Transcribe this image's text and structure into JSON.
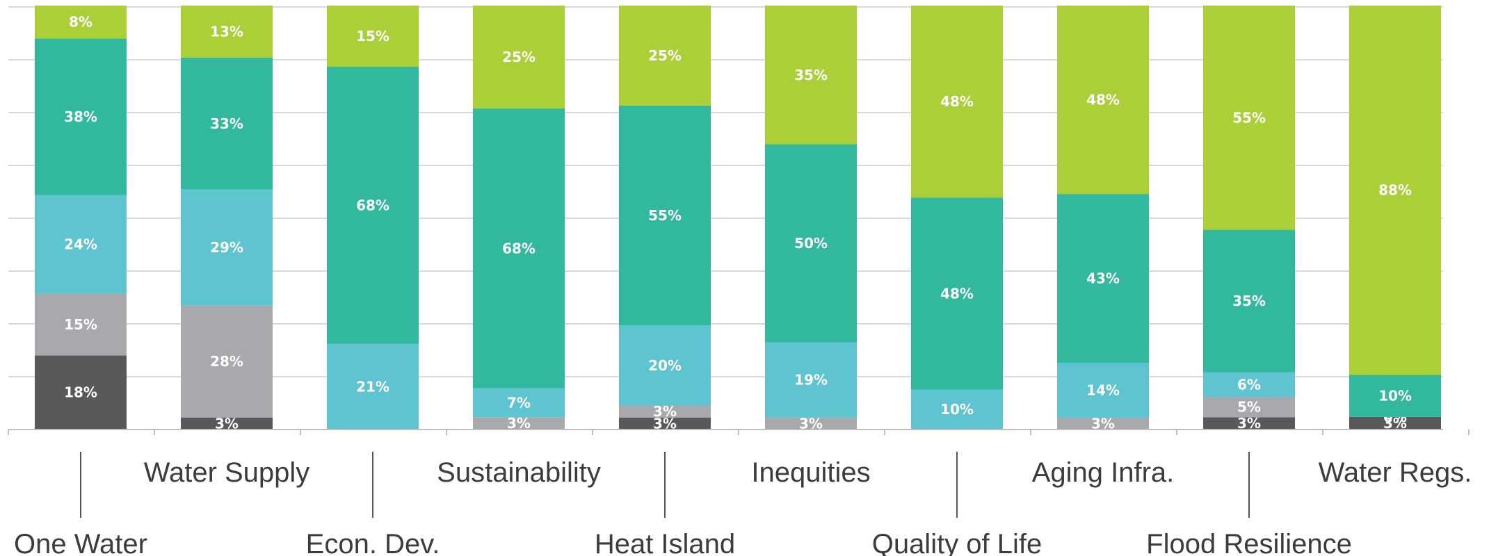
{
  "chart_data": {
    "type": "bar",
    "stacked": true,
    "normalized": true,
    "ylim": [
      0,
      100
    ],
    "grid": true,
    "legend": "none",
    "categories": [
      "One Water",
      "Water Supply",
      "Econ. Dev.",
      "Sustainability",
      "Heat Island",
      "Inequities",
      "Quality of Life",
      "Aging Infra.",
      "Flood Resilience",
      "Water Regs."
    ],
    "series": [
      {
        "color": "#58595b",
        "values": [
          18,
          3,
          0,
          0,
          3,
          0,
          0,
          0,
          3,
          3
        ],
        "labels": [
          "18%",
          "3%",
          "",
          "",
          "3%",
          "",
          "",
          "",
          "3%",
          "3%"
        ]
      },
      {
        "color": "#a7a9ac",
        "values": [
          15,
          28,
          0,
          3,
          3,
          3,
          0,
          3,
          5,
          0
        ],
        "labels": [
          "15%",
          "28%",
          "",
          "3%",
          "3%",
          "3%",
          "",
          "3%",
          "5%",
          "0%"
        ]
      },
      {
        "color": "#5dc4d0",
        "values": [
          24,
          29,
          21,
          7,
          20,
          19,
          10,
          14,
          6,
          0
        ],
        "labels": [
          "24%",
          "29%",
          "21%",
          "7%",
          "20%",
          "19%",
          "10%",
          "14%",
          "6%",
          ""
        ]
      },
      {
        "color": "#32b99d",
        "values": [
          38,
          33,
          68,
          68,
          55,
          50,
          48,
          43,
          35,
          10
        ],
        "labels": [
          "38%",
          "33%",
          "68%",
          "68%",
          "55%",
          "50%",
          "48%",
          "43%",
          "35%",
          "10%"
        ]
      },
      {
        "color": "#abcf37",
        "values": [
          8,
          13,
          15,
          25,
          25,
          35,
          48,
          48,
          55,
          88
        ],
        "labels": [
          "8%",
          "13%",
          "15%",
          "25%",
          "25%",
          "35%",
          "48%",
          "48%",
          "55%",
          "88%"
        ]
      }
    ]
  }
}
